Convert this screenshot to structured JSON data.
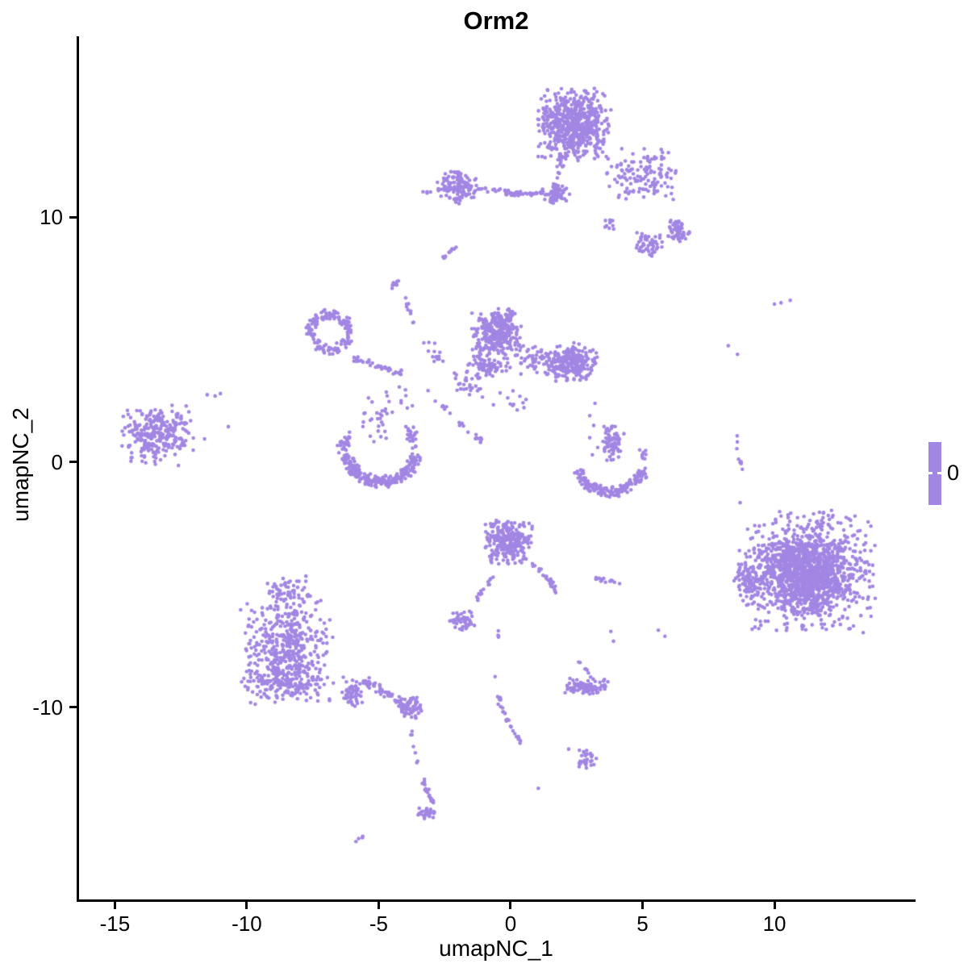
{
  "legend": {
    "label": "0"
  },
  "style": {
    "point_color": "#a286e3",
    "point_radius": 2.3,
    "background": "#ffffff",
    "axis_color": "#000000",
    "text_color": "#000000"
  },
  "chart_data": {
    "type": "scatter",
    "title": "Orm2",
    "xlabel": "umapNC_1",
    "ylabel": "umapNC_2",
    "xlim": [
      -16.45,
      15.35
    ],
    "ylim": [
      -17.93,
      17.37
    ],
    "x_ticks": [
      -15,
      -10,
      -5,
      0,
      5,
      10
    ],
    "y_ticks": [
      -10,
      0,
      10
    ],
    "grid": false,
    "legend_position": "right",
    "legend_values": [
      "0"
    ],
    "series_color": "#a286e3",
    "clusters": [
      {
        "name": "top-main-blob",
        "kind": "blob",
        "cx": 2.4,
        "cy": 13.75,
        "rx": 1.5,
        "ry": 1.55,
        "n": 620
      },
      {
        "name": "top-left-column",
        "kind": "chain",
        "pts": [
          [
            1.9,
            12.4
          ],
          [
            1.6,
            10.7
          ]
        ],
        "jitter": 0.18,
        "n": 35
      },
      {
        "name": "top-funnel",
        "kind": "blob",
        "cx": 1.7,
        "cy": 10.9,
        "rx": 0.55,
        "ry": 0.45,
        "n": 45
      },
      {
        "name": "top-left-tail",
        "kind": "chain",
        "pts": [
          [
            -0.35,
            10.9
          ],
          [
            1.2,
            11.0
          ]
        ],
        "jitter": 0.12,
        "n": 30
      },
      {
        "name": "top-right-spray",
        "kind": "blob",
        "cx": 5.0,
        "cy": 11.75,
        "rx": 1.65,
        "ry": 1.15,
        "n": 130
      },
      {
        "name": "top-right-knot",
        "kind": "blob",
        "cx": 6.3,
        "cy": 9.4,
        "rx": 0.55,
        "ry": 0.5,
        "n": 55
      },
      {
        "name": "top-right-knot2",
        "kind": "blob",
        "cx": 5.3,
        "cy": 8.9,
        "rx": 0.6,
        "ry": 0.55,
        "n": 50
      },
      {
        "name": "top-v-clump",
        "kind": "blob",
        "cx": 3.7,
        "cy": 9.7,
        "rx": 0.25,
        "ry": 0.3,
        "n": 10
      },
      {
        "name": "upper-left-cluster",
        "kind": "blob",
        "cx": -2.05,
        "cy": 11.25,
        "rx": 0.8,
        "ry": 0.75,
        "n": 130
      },
      {
        "name": "upper-left-dash",
        "kind": "chain",
        "pts": [
          [
            -3.3,
            11.0
          ],
          [
            -3.0,
            11.0
          ]
        ],
        "jitter": 0.05,
        "n": 4
      },
      {
        "name": "upper-left-bridge",
        "kind": "chain",
        "pts": [
          [
            -1.2,
            11.15
          ],
          [
            0.9,
            10.9
          ]
        ],
        "jitter": 0.1,
        "n": 26
      },
      {
        "name": "small-diagonal-pair",
        "kind": "chain",
        "pts": [
          [
            -2.6,
            8.3
          ],
          [
            -2.05,
            8.8
          ]
        ],
        "jitter": 0.08,
        "n": 10
      },
      {
        "name": "mid-left-lobe",
        "kind": "blob",
        "cx": -0.55,
        "cy": 5.35,
        "rx": 1.0,
        "ry": 1.05,
        "n": 300
      },
      {
        "name": "mid-left-lower",
        "kind": "blob",
        "cx": -0.8,
        "cy": 3.9,
        "rx": 0.85,
        "ry": 0.55,
        "n": 70
      },
      {
        "name": "mid-right-lobe",
        "kind": "blob",
        "cx": 2.3,
        "cy": 4.1,
        "rx": 1.05,
        "ry": 0.85,
        "n": 240
      },
      {
        "name": "mid-bridge",
        "kind": "blob",
        "cx": 0.8,
        "cy": 4.2,
        "rx": 0.75,
        "ry": 0.65,
        "n": 45
      },
      {
        "name": "mid-downleft-trail",
        "kind": "blob",
        "cx": -1.6,
        "cy": 3.3,
        "rx": 0.6,
        "ry": 0.9,
        "n": 30
      },
      {
        "name": "mid-below-dots",
        "kind": "blob",
        "cx": 0.0,
        "cy": 2.6,
        "rx": 0.7,
        "ry": 0.6,
        "n": 12
      },
      {
        "name": "ring-cluster",
        "kind": "arc",
        "cx": -6.85,
        "cy": 5.3,
        "r": 0.72,
        "a0": 0,
        "a1": 360,
        "th": 0.5,
        "n": 150
      },
      {
        "name": "ring-trail",
        "kind": "chain",
        "pts": [
          [
            -5.95,
            4.25
          ],
          [
            -5.0,
            3.9
          ],
          [
            -4.15,
            3.6
          ]
        ],
        "jitter": 0.16,
        "n": 40
      },
      {
        "name": "ring-strand-up",
        "kind": "chain",
        "pts": [
          [
            -3.95,
            6.7
          ],
          [
            -3.6,
            5.5
          ]
        ],
        "jitter": 0.12,
        "n": 10
      },
      {
        "name": "tiny-cluster-up",
        "kind": "blob",
        "cx": -4.4,
        "cy": 7.3,
        "rx": 0.25,
        "ry": 0.25,
        "n": 10
      },
      {
        "name": "mid-scatter-right",
        "kind": "blob",
        "cx": -2.9,
        "cy": 4.4,
        "rx": 0.7,
        "ry": 0.6,
        "n": 14
      },
      {
        "name": "mid-scatter-below",
        "kind": "blob",
        "cx": -4.2,
        "cy": 2.5,
        "rx": 1.3,
        "ry": 0.8,
        "n": 14
      },
      {
        "name": "far-left-cluster",
        "kind": "blob",
        "cx": -13.4,
        "cy": 1.15,
        "rx": 1.45,
        "ry": 1.3,
        "n": 270
      },
      {
        "name": "far-left-outliers",
        "kind": "dots",
        "pts": [
          [
            -11.5,
            2.75
          ],
          [
            -11.2,
            2.7
          ],
          [
            -11.0,
            2.8
          ],
          [
            -10.7,
            1.45
          ],
          [
            -11.6,
            0.95
          ]
        ]
      },
      {
        "name": "left-crescent-arc",
        "kind": "arc",
        "cx": -4.9,
        "cy": 0.55,
        "r": 1.35,
        "a0": 190,
        "a1": 350,
        "th": 0.55,
        "n": 230
      },
      {
        "name": "left-crescent-arm-l",
        "kind": "blob",
        "cx": -6.3,
        "cy": 0.8,
        "rx": 0.3,
        "ry": 0.5,
        "n": 25
      },
      {
        "name": "left-crescent-arm-r",
        "kind": "blob",
        "cx": -3.75,
        "cy": 1.0,
        "rx": 0.25,
        "ry": 0.55,
        "n": 25
      },
      {
        "name": "left-crescent-inner",
        "kind": "blob",
        "cx": -5.1,
        "cy": 1.5,
        "rx": 0.8,
        "ry": 0.8,
        "n": 14
      },
      {
        "name": "crescent-bridge-strand",
        "kind": "chain",
        "pts": [
          [
            -2.85,
            2.55
          ],
          [
            -2.2,
            1.9
          ],
          [
            -1.5,
            1.2
          ],
          [
            -1.05,
            0.85
          ]
        ],
        "jitter": 0.12,
        "n": 22
      },
      {
        "name": "above-crescent-sparse",
        "kind": "blob",
        "cx": -5.0,
        "cy": 1.9,
        "rx": 0.7,
        "ry": 0.7,
        "n": 10
      },
      {
        "name": "right-crescent-stem",
        "kind": "blob",
        "cx": 3.85,
        "cy": 0.75,
        "rx": 0.45,
        "ry": 0.8,
        "n": 75
      },
      {
        "name": "right-crescent-dots",
        "kind": "dots",
        "pts": [
          [
            3.2,
            2.4
          ],
          [
            3.0,
            1.9
          ],
          [
            3.15,
            1.5
          ],
          [
            3.0,
            1.0
          ],
          [
            3.3,
            0.6
          ],
          [
            3.1,
            0.3
          ]
        ]
      },
      {
        "name": "right-crescent-arc",
        "kind": "arc",
        "cx": 3.8,
        "cy": 0.1,
        "r": 1.3,
        "a0": 200,
        "a1": 345,
        "th": 0.5,
        "n": 170
      },
      {
        "name": "right-crescent-hook",
        "kind": "blob",
        "cx": 5.0,
        "cy": 0.25,
        "rx": 0.18,
        "ry": 0.3,
        "n": 8
      },
      {
        "name": "center-bottom-cluster",
        "kind": "blob",
        "cx": -0.1,
        "cy": -3.25,
        "rx": 1.0,
        "ry": 0.95,
        "n": 280
      },
      {
        "name": "center-bottom-tail-r",
        "kind": "chain",
        "pts": [
          [
            0.9,
            -4.3
          ],
          [
            1.5,
            -4.8
          ],
          [
            1.75,
            -5.35
          ]
        ],
        "jitter": 0.14,
        "n": 25
      },
      {
        "name": "center-bottom-tail-l",
        "kind": "chain",
        "pts": [
          [
            -0.65,
            -4.6
          ],
          [
            -1.35,
            -5.75
          ]
        ],
        "jitter": 0.1,
        "n": 14
      },
      {
        "name": "dash-pair",
        "kind": "chain",
        "pts": [
          [
            3.1,
            -4.75
          ],
          [
            4.05,
            -4.9
          ]
        ],
        "jitter": 0.1,
        "n": 14
      },
      {
        "name": "small-left-cluster",
        "kind": "blob",
        "cx": -1.9,
        "cy": -6.5,
        "rx": 0.55,
        "ry": 0.45,
        "n": 45
      },
      {
        "name": "small-vert-dash",
        "kind": "chain",
        "pts": [
          [
            -0.45,
            -6.75
          ],
          [
            -0.45,
            -7.15
          ]
        ],
        "jitter": 0.04,
        "n": 4
      },
      {
        "name": "bottomleft-core",
        "kind": "blob",
        "cx": -8.5,
        "cy": -7.5,
        "rx": 1.8,
        "ry": 2.2,
        "n": 420
      },
      {
        "name": "bottomleft-top-tip",
        "kind": "blob",
        "cx": -8.4,
        "cy": -5.3,
        "rx": 0.9,
        "ry": 0.7,
        "n": 60
      },
      {
        "name": "bottomleft-wide-base",
        "kind": "blob",
        "cx": -8.5,
        "cy": -9.0,
        "rx": 1.9,
        "ry": 0.9,
        "n": 160
      },
      {
        "name": "bottomleft-bulge",
        "kind": "blob",
        "cx": -6.05,
        "cy": -9.4,
        "rx": 0.5,
        "ry": 0.7,
        "n": 50
      },
      {
        "name": "bottomleft-tail",
        "kind": "chain",
        "pts": [
          [
            -5.5,
            -8.9
          ],
          [
            -4.6,
            -9.5
          ],
          [
            -3.95,
            -10.0
          ]
        ],
        "jitter": 0.22,
        "n": 55
      },
      {
        "name": "tail-end-blob",
        "kind": "blob",
        "cx": -3.8,
        "cy": -10.0,
        "rx": 0.55,
        "ry": 0.5,
        "n": 60
      },
      {
        "name": "tail-dotted-chain",
        "kind": "chain",
        "pts": [
          [
            -3.8,
            -10.9
          ],
          [
            -3.5,
            -12.4
          ]
        ],
        "jitter": 0.07,
        "n": 7
      },
      {
        "name": "tail-elongated",
        "kind": "chain",
        "pts": [
          [
            -3.4,
            -12.9
          ],
          [
            -2.95,
            -13.9
          ]
        ],
        "jitter": 0.12,
        "n": 22
      },
      {
        "name": "tail-bottom-blob",
        "kind": "blob",
        "cx": -3.2,
        "cy": -14.3,
        "rx": 0.4,
        "ry": 0.33,
        "n": 28
      },
      {
        "name": "isolated-dash",
        "kind": "chain",
        "pts": [
          [
            -5.9,
            -15.5
          ],
          [
            -5.5,
            -15.2
          ]
        ],
        "jitter": 0.05,
        "n": 5
      },
      {
        "name": "s-chain",
        "kind": "chain",
        "pts": [
          [
            -0.55,
            -8.7
          ],
          [
            -0.5,
            -9.4
          ],
          [
            -0.3,
            -10.1
          ],
          [
            -0.05,
            -10.7
          ],
          [
            0.25,
            -11.2
          ],
          [
            0.45,
            -11.5
          ]
        ],
        "jitter": 0.09,
        "n": 26
      },
      {
        "name": "horizontal-cluster",
        "kind": "blob",
        "cx": 2.95,
        "cy": -9.15,
        "rx": 0.95,
        "ry": 0.38,
        "n": 95
      },
      {
        "name": "horizontal-above",
        "kind": "chain",
        "pts": [
          [
            2.6,
            -8.1
          ],
          [
            3.0,
            -8.7
          ]
        ],
        "jitter": 0.1,
        "n": 7
      },
      {
        "name": "angular-clump",
        "kind": "blob",
        "cx": 2.85,
        "cy": -12.1,
        "rx": 0.45,
        "ry": 0.42,
        "n": 32
      },
      {
        "name": "angular-dots",
        "kind": "dots",
        "pts": [
          [
            2.2,
            -11.7
          ],
          [
            1.05,
            -13.3
          ]
        ]
      },
      {
        "name": "right-big-halo",
        "kind": "blob",
        "cx": 11.2,
        "cy": -4.45,
        "rx": 2.7,
        "ry": 2.6,
        "n": 1000
      },
      {
        "name": "right-big-core",
        "kind": "blob",
        "cx": 11.1,
        "cy": -4.6,
        "rx": 1.7,
        "ry": 1.6,
        "n": 600
      },
      {
        "name": "right-big-protrusion",
        "kind": "blob",
        "cx": 9.0,
        "cy": -4.9,
        "rx": 0.55,
        "ry": 0.85,
        "n": 70
      },
      {
        "name": "right-lone-dot",
        "kind": "dots",
        "pts": [
          [
            8.7,
            -1.65
          ]
        ]
      },
      {
        "name": "right-strand",
        "kind": "chain",
        "pts": [
          [
            8.6,
            1.05
          ],
          [
            8.5,
            0.3
          ],
          [
            8.9,
            -0.3
          ]
        ],
        "jitter": 0.1,
        "n": 9
      },
      {
        "name": "right-mid-dots",
        "kind": "dots",
        "pts": [
          [
            8.25,
            4.75
          ],
          [
            8.6,
            4.4
          ]
        ]
      },
      {
        "name": "right-high-trio",
        "kind": "dots",
        "pts": [
          [
            10.0,
            6.45
          ],
          [
            10.25,
            6.5
          ],
          [
            10.6,
            6.6
          ]
        ]
      },
      {
        "name": "lower-sparse-dots",
        "kind": "dots",
        "pts": [
          [
            3.8,
            -6.9
          ],
          [
            3.9,
            -7.3
          ],
          [
            5.6,
            -6.85
          ],
          [
            5.85,
            -7.1
          ]
        ]
      }
    ]
  }
}
